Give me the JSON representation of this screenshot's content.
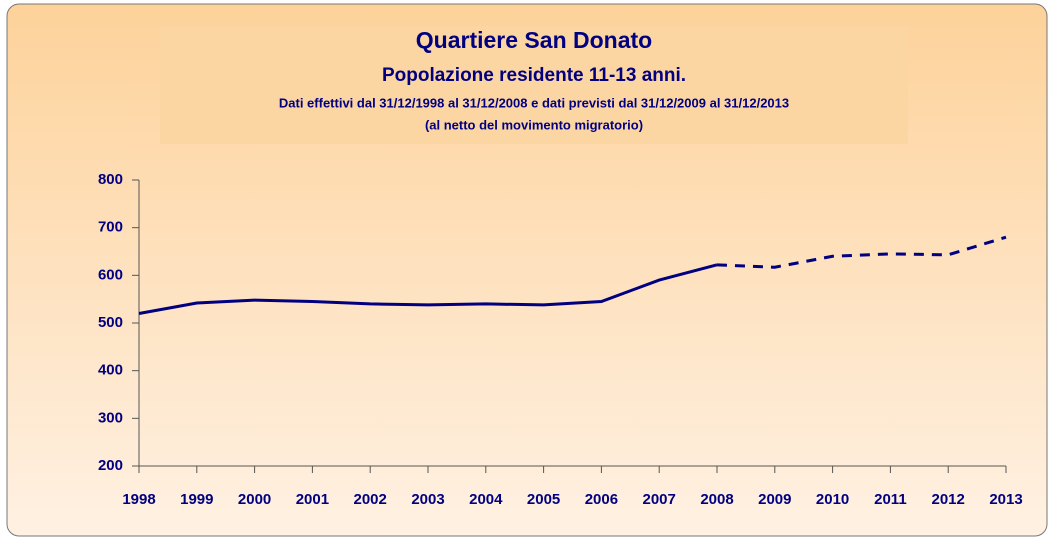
{
  "chart_data": {
    "type": "line",
    "title": "Quartiere San Donato",
    "subtitle": "Popolazione residente 11-13 anni.",
    "annotations": [
      "Dati effettivi dal 31/12/1998 al 31/12/2008 e dati previsti dal 31/12/2009 al 31/12/2013",
      "(al netto del movimento migratorio)"
    ],
    "categories": [
      "1998",
      "1999",
      "2000",
      "2001",
      "2002",
      "2003",
      "2004",
      "2005",
      "2006",
      "2007",
      "2008",
      "2009",
      "2010",
      "2011",
      "2012",
      "2013"
    ],
    "series": [
      {
        "color": "#000080",
        "dashed": false,
        "values": [
          520,
          542,
          548,
          545,
          540,
          538,
          540,
          538,
          545,
          590,
          622,
          null,
          null,
          null,
          null,
          null
        ]
      },
      {
        "color": "#000080",
        "dashed": true,
        "values": [
          null,
          null,
          null,
          null,
          null,
          null,
          null,
          null,
          null,
          null,
          622,
          617,
          640,
          645,
          643,
          680
        ]
      }
    ],
    "ylim": [
      200,
      800
    ],
    "yticks": [
      200,
      300,
      400,
      500,
      600,
      700,
      800
    ],
    "grid": false
  }
}
